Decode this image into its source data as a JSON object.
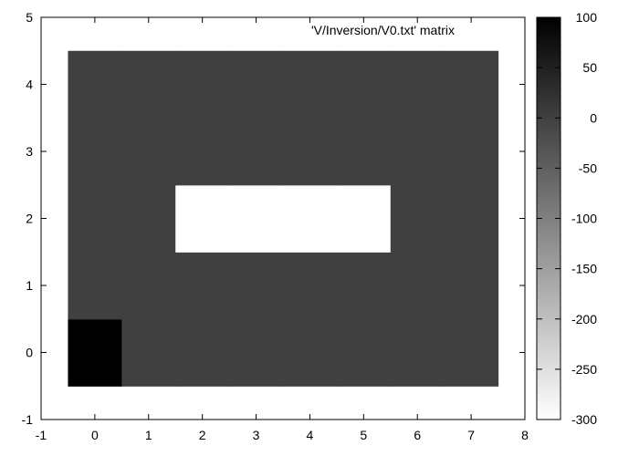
{
  "chart_data": {
    "type": "heatmap",
    "legend_label": "'V/Inversion/V0.txt' matrix",
    "xlim": [
      -1,
      8
    ],
    "ylim": [
      -1,
      5
    ],
    "x_ticks": [
      -1,
      0,
      1,
      2,
      3,
      4,
      5,
      6,
      7,
      8
    ],
    "y_ticks": [
      -1,
      0,
      1,
      2,
      3,
      4,
      5
    ],
    "x_tick_labels": [
      "-1",
      "0",
      "1",
      "2",
      "3",
      "4",
      "5",
      "6",
      "7",
      "8"
    ],
    "y_tick_labels": [
      "-1",
      "0",
      "1",
      "2",
      "3",
      "4",
      "5"
    ],
    "x": [
      0,
      1,
      2,
      3,
      4,
      5,
      6,
      7
    ],
    "y": [
      0,
      1,
      2,
      3,
      4
    ],
    "values": [
      [
        100,
        0,
        0,
        0,
        0,
        0,
        0,
        0
      ],
      [
        0,
        0,
        0,
        0,
        0,
        0,
        0,
        0
      ],
      [
        0,
        0,
        -300,
        -300,
        -300,
        -300,
        0,
        0
      ],
      [
        0,
        0,
        0,
        0,
        0,
        0,
        0,
        0
      ],
      [
        0,
        0,
        0,
        0,
        0,
        0,
        0,
        0
      ]
    ],
    "colorbar": {
      "range": [
        -300,
        100
      ],
      "ticks": [
        100,
        50,
        0,
        -50,
        -100,
        -150,
        -200,
        -250,
        -300
      ],
      "tick_labels": [
        "100",
        "50",
        "0",
        "-50",
        "-100",
        "-150",
        "-200",
        "-250",
        "-300"
      ],
      "color_max": "#000000",
      "color_min": "#ffffff"
    },
    "grid": false,
    "legend_position": "top-right"
  }
}
